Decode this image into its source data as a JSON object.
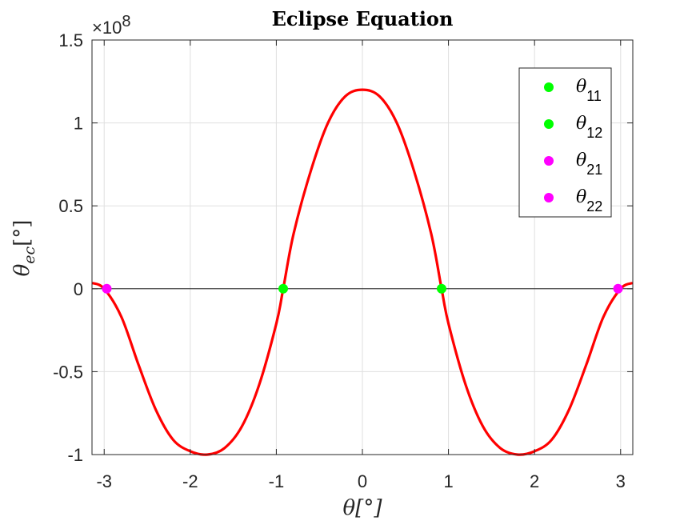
{
  "chart_data": {
    "type": "line",
    "title": "Eclipse Equation",
    "xlabel": "θ[°]",
    "ylabel": "θec[°]",
    "y_exponent_label": "×10^8",
    "xlim": [
      -3.1416,
      3.1416
    ],
    "ylim": [
      -1.0,
      1.5
    ],
    "y_scale_factor": 100000000,
    "x_ticks": [
      -3,
      -2,
      -1,
      0,
      1,
      2,
      3
    ],
    "x_tick_labels": [
      "-3",
      "-2",
      "-1",
      "0",
      "1",
      "2",
      "3"
    ],
    "y_ticks": [
      -1,
      -0.5,
      0,
      0.5,
      1,
      1.5
    ],
    "y_tick_labels": [
      "-1",
      "-0.5",
      "0",
      "0.5",
      "1",
      "1.5"
    ],
    "grid": true,
    "curve": {
      "color": "#ff0000",
      "x": [
        -3.14,
        -3.0,
        -2.8,
        -2.6,
        -2.4,
        -2.2,
        -2.0,
        -1.8,
        -1.6,
        -1.4,
        -1.2,
        -1.0,
        -0.92,
        -0.8,
        -0.6,
        -0.4,
        -0.2,
        0.0,
        0.2,
        0.4,
        0.6,
        0.8,
        0.92,
        1.0,
        1.2,
        1.4,
        1.6,
        1.8,
        2.0,
        2.2,
        2.4,
        2.6,
        2.8,
        3.0,
        3.14
      ],
      "y": [
        0.035,
        0.0,
        -0.17,
        -0.46,
        -0.73,
        -0.91,
        -0.98,
        -1.0,
        -0.96,
        -0.83,
        -0.58,
        -0.21,
        0.0,
        0.33,
        0.71,
        1.0,
        1.16,
        1.2,
        1.16,
        1.0,
        0.71,
        0.33,
        0.0,
        -0.21,
        -0.58,
        -0.83,
        -0.96,
        -1.0,
        -0.98,
        -0.91,
        -0.73,
        -0.46,
        -0.17,
        0.0,
        0.035
      ]
    },
    "series": [
      {
        "name": "θ11",
        "base": "θ",
        "sub": "11",
        "color": "#00ff00",
        "x": [
          -0.92
        ],
        "y": [
          0
        ]
      },
      {
        "name": "θ12",
        "base": "θ",
        "sub": "12",
        "color": "#00ff00",
        "x": [
          0.92
        ],
        "y": [
          0
        ]
      },
      {
        "name": "θ21",
        "base": "θ",
        "sub": "21",
        "color": "#ff00ff",
        "x": [
          -2.97
        ],
        "y": [
          0
        ]
      },
      {
        "name": "θ22",
        "base": "θ",
        "sub": "22",
        "color": "#ff00ff",
        "x": [
          2.97
        ],
        "y": [
          0
        ]
      }
    ],
    "legend_location": "top-right"
  }
}
